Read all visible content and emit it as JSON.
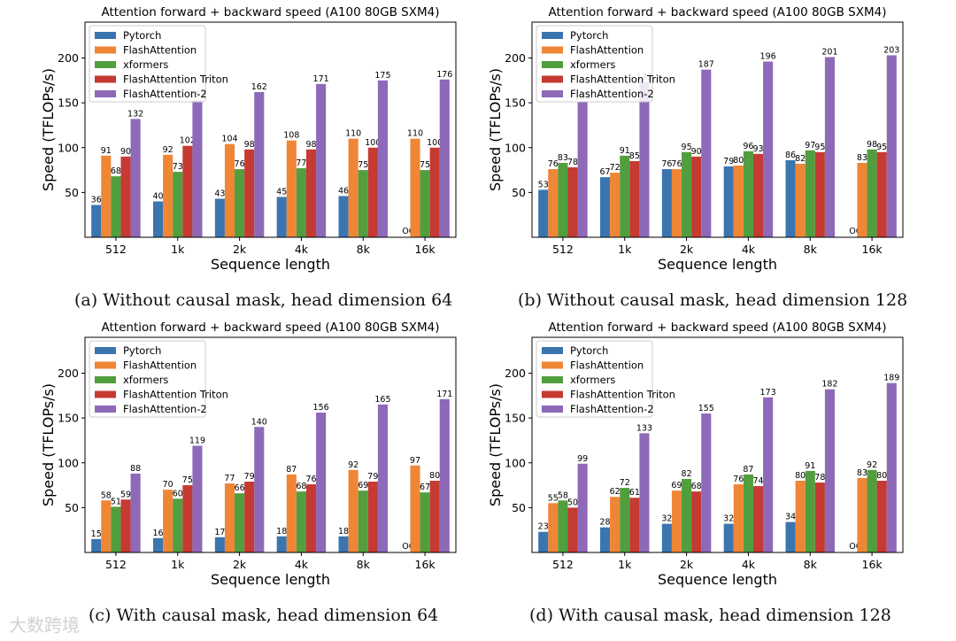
{
  "figure": {
    "watermark": "大数跨境"
  },
  "colors": {
    "Pytorch": "#3b75af",
    "FlashAttention": "#ef8636",
    "xformers": "#519e3e",
    "FlashAttention Triton": "#c53a32",
    "FlashAttention-2": "#8d69b8"
  },
  "chart_data": [
    {
      "type": "bar",
      "title": "Attention forward + backward speed (A100 80GB SXM4)",
      "caption": "(a) Without causal mask, head dimension 64",
      "xlabel": "Sequence length",
      "ylabel": "Speed (TFLOPs/s)",
      "ylim": [
        0,
        240
      ],
      "yticks": [
        50,
        100,
        150,
        200
      ],
      "grid": false,
      "legend_position": "top-left",
      "categories": [
        "512",
        "1k",
        "2k",
        "4k",
        "8k",
        "16k"
      ],
      "oom_label": "OOM",
      "series": [
        {
          "name": "Pytorch",
          "values": [
            36,
            40,
            43,
            45,
            46,
            null
          ]
        },
        {
          "name": "FlashAttention",
          "values": [
            91,
            92,
            104,
            108,
            110,
            110
          ]
        },
        {
          "name": "xformers",
          "values": [
            68,
            73,
            76,
            77,
            75,
            75
          ]
        },
        {
          "name": "FlashAttention Triton",
          "values": [
            90,
            102,
            98,
            98,
            100,
            100
          ]
        },
        {
          "name": "FlashAttention-2",
          "values": [
            132,
            153,
            162,
            171,
            175,
            176
          ]
        }
      ]
    },
    {
      "type": "bar",
      "title": "Attention forward + backward speed (A100 80GB SXM4)",
      "caption": "(b) Without causal mask, head dimension 128",
      "xlabel": "Sequence length",
      "ylabel": "Speed (TFLOPs/s)",
      "ylim": [
        0,
        240
      ],
      "yticks": [
        50,
        100,
        150,
        200
      ],
      "grid": false,
      "legend_position": "top-left",
      "categories": [
        "512",
        "1k",
        "2k",
        "4k",
        "8k",
        "16k"
      ],
      "oom_label": "OOM",
      "series": [
        {
          "name": "Pytorch",
          "values": [
            53,
            67,
            76,
            79,
            86,
            null
          ]
        },
        {
          "name": "FlashAttention",
          "values": [
            76,
            72,
            76,
            80,
            82,
            83
          ]
        },
        {
          "name": "xformers",
          "values": [
            83,
            91,
            95,
            96,
            97,
            98
          ]
        },
        {
          "name": "FlashAttention Triton",
          "values": [
            78,
            85,
            90,
            93,
            95,
            95
          ]
        },
        {
          "name": "FlashAttention-2",
          "values": [
            151,
            173,
            187,
            196,
            201,
            203
          ]
        }
      ]
    },
    {
      "type": "bar",
      "title": "Attention forward + backward speed (A100 80GB SXM4)",
      "caption": "(c) With causal mask, head dimension 64",
      "xlabel": "Sequence length",
      "ylabel": "Speed (TFLOPs/s)",
      "ylim": [
        0,
        240
      ],
      "yticks": [
        50,
        100,
        150,
        200
      ],
      "grid": false,
      "legend_position": "top-left",
      "categories": [
        "512",
        "1k",
        "2k",
        "4k",
        "8k",
        "16k"
      ],
      "oom_label": "OOM",
      "series": [
        {
          "name": "Pytorch",
          "values": [
            15,
            16,
            17,
            18,
            18,
            null
          ]
        },
        {
          "name": "FlashAttention",
          "values": [
            58,
            70,
            77,
            87,
            92,
            97
          ]
        },
        {
          "name": "xformers",
          "values": [
            51,
            60,
            66,
            68,
            69,
            67
          ]
        },
        {
          "name": "FlashAttention Triton",
          "values": [
            59,
            75,
            79,
            76,
            79,
            80
          ]
        },
        {
          "name": "FlashAttention-2",
          "values": [
            88,
            119,
            140,
            156,
            165,
            171
          ]
        }
      ]
    },
    {
      "type": "bar",
      "title": "Attention forward + backward speed (A100 80GB SXM4)",
      "caption": "(d) With causal mask, head dimension 128",
      "xlabel": "Sequence length",
      "ylabel": "Speed (TFLOPs/s)",
      "ylim": [
        0,
        240
      ],
      "yticks": [
        50,
        100,
        150,
        200
      ],
      "grid": false,
      "legend_position": "top-left",
      "categories": [
        "512",
        "1k",
        "2k",
        "4k",
        "8k",
        "16k"
      ],
      "oom_label": "OOM",
      "series": [
        {
          "name": "Pytorch",
          "values": [
            23,
            28,
            32,
            32,
            34,
            null
          ]
        },
        {
          "name": "FlashAttention",
          "values": [
            55,
            62,
            69,
            76,
            80,
            83
          ]
        },
        {
          "name": "xformers",
          "values": [
            58,
            72,
            82,
            87,
            91,
            92
          ]
        },
        {
          "name": "FlashAttention Triton",
          "values": [
            50,
            61,
            68,
            74,
            78,
            80
          ]
        },
        {
          "name": "FlashAttention-2",
          "values": [
            99,
            133,
            155,
            173,
            182,
            189
          ]
        }
      ]
    }
  ]
}
